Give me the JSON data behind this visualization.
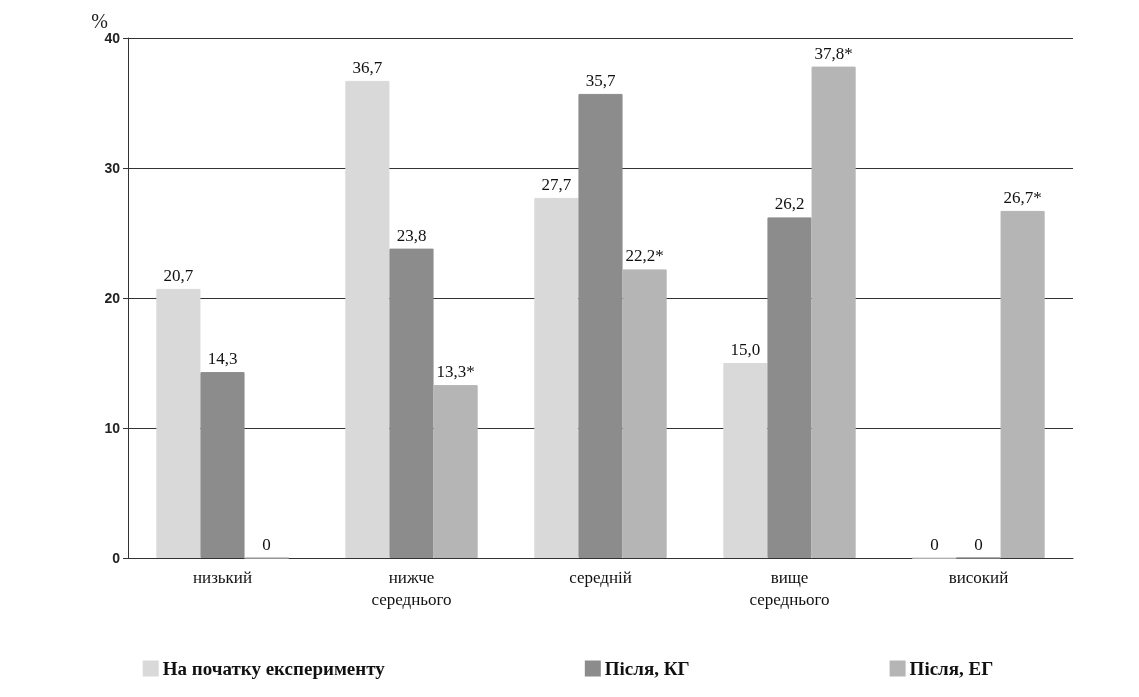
{
  "chart_data": {
    "type": "bar",
    "ylabel": "%",
    "categories": [
      "низький",
      "нижче середнього",
      "середній",
      "вище середнього",
      "високий"
    ],
    "series": [
      {
        "name": "На початку експерименту",
        "color": "#d9d9d9",
        "values": [
          20.7,
          36.7,
          27.7,
          15.0,
          0
        ],
        "value_labels": [
          "20,7",
          "36,7",
          "27,7",
          "15,0",
          "0"
        ]
      },
      {
        "name": "Після, КГ",
        "color": "#8c8c8c",
        "values": [
          14.3,
          23.8,
          35.7,
          26.2,
          0
        ],
        "value_labels": [
          "14,3",
          "23,8",
          "35,7",
          "26,2",
          "0"
        ]
      },
      {
        "name": "Після, ЕГ",
        "color": "#b5b5b5",
        "values": [
          0,
          13.3,
          22.2,
          37.8,
          26.7
        ],
        "value_labels": [
          "0",
          "13,3*",
          "22,2*",
          "37,8*",
          "26,7*"
        ]
      }
    ],
    "ylim": [
      0,
      40
    ],
    "yticks": [
      0,
      10,
      20,
      30,
      40
    ],
    "grid": "y",
    "legend": "bottom"
  }
}
